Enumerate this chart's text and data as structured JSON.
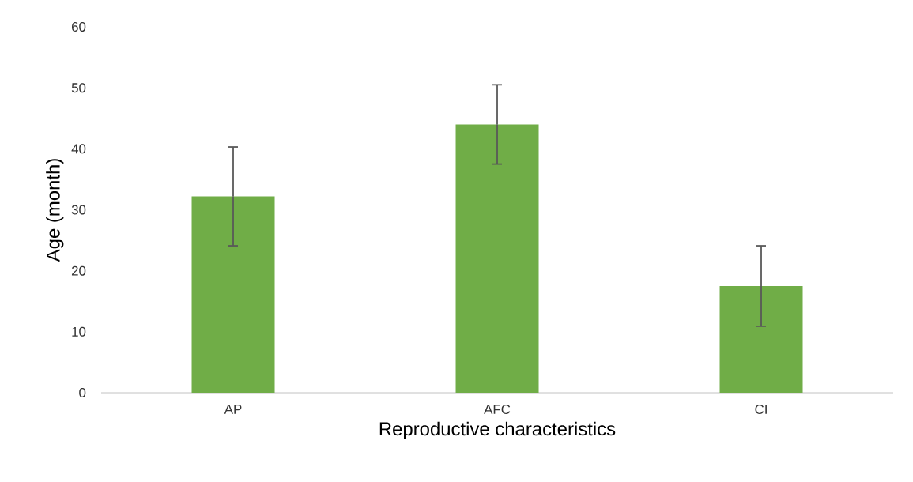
{
  "chart_data": {
    "type": "bar",
    "xlabel": "Reproductive characteristics",
    "ylabel": "Age (month)",
    "categories": [
      "AP",
      "AFC",
      "CI"
    ],
    "values": [
      32.2,
      44.0,
      17.5
    ],
    "errors": [
      8.1,
      6.5,
      6.6
    ],
    "color": "#70ad47",
    "ylim": [
      0,
      60
    ],
    "yticks": [
      0,
      10,
      20,
      30,
      40,
      50,
      60
    ]
  }
}
